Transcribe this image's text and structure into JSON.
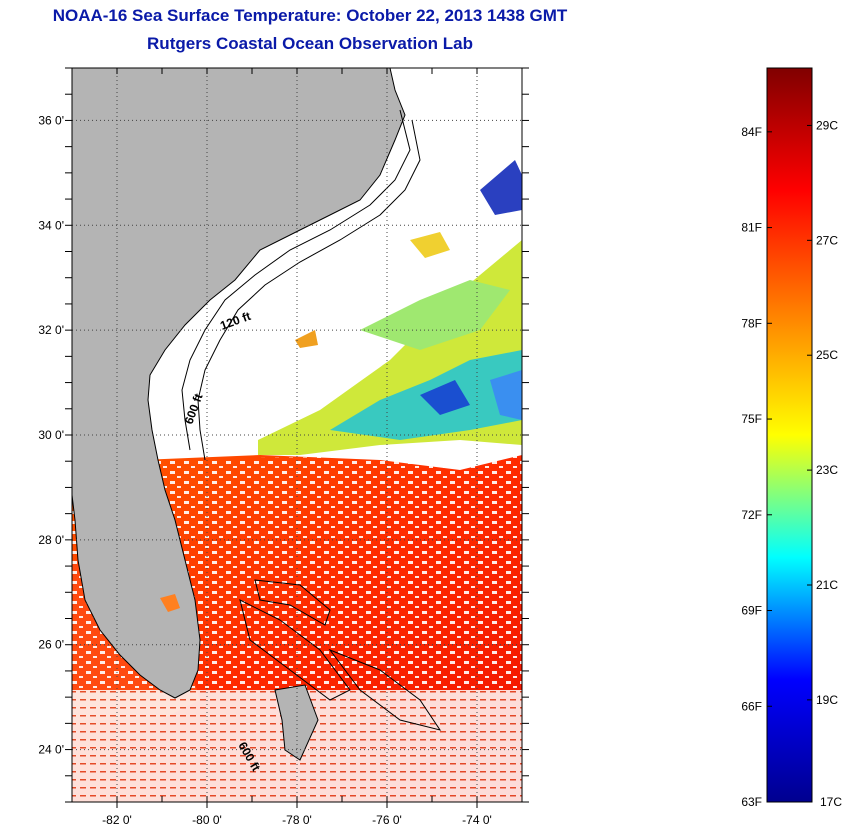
{
  "title": "NOAA-16 Sea Surface Temperature:  October 22, 2013 1438 GMT",
  "subtitle": "Rutgers Coastal Ocean Observation Lab",
  "map": {
    "lon_range": [
      -83,
      -73
    ],
    "lat_range": [
      23,
      37
    ],
    "lon_ticks": [
      {
        "value": -82,
        "label": "-82 0'"
      },
      {
        "value": -80,
        "label": "-80 0'"
      },
      {
        "value": -78,
        "label": "-78 0'"
      },
      {
        "value": -76,
        "label": "-76 0'"
      },
      {
        "value": -74,
        "label": "-74 0'"
      }
    ],
    "lat_ticks": [
      {
        "value": 24,
        "label": "24 0'"
      },
      {
        "value": 26,
        "label": "26 0'"
      },
      {
        "value": 28,
        "label": "28 0'"
      },
      {
        "value": 30,
        "label": "30 0'"
      },
      {
        "value": 32,
        "label": "32 0'"
      },
      {
        "value": 34,
        "label": "34 0'"
      },
      {
        "value": 36,
        "label": "36 0'"
      }
    ],
    "contour_labels": [
      "120 ft",
      "600 ft",
      "600 ft"
    ],
    "colors": {
      "land": "#b4b4b4",
      "coast": "#000000",
      "grid": "#555555"
    }
  },
  "colorbar": {
    "min_f": 63,
    "max_f": 86,
    "fahrenheit_labels": [
      {
        "value": 63,
        "label": "63F"
      },
      {
        "value": 66,
        "label": "66F"
      },
      {
        "value": 69,
        "label": "69F"
      },
      {
        "value": 72,
        "label": "72F"
      },
      {
        "value": 75,
        "label": "75F"
      },
      {
        "value": 78,
        "label": "78F"
      },
      {
        "value": 81,
        "label": "81F"
      },
      {
        "value": 84,
        "label": "84F"
      }
    ],
    "celsius_labels": [
      {
        "value": 17,
        "label": "17C"
      },
      {
        "value": 19,
        "label": "19C"
      },
      {
        "value": 21,
        "label": "21C"
      },
      {
        "value": 23,
        "label": "23C"
      },
      {
        "value": 25,
        "label": "25C"
      },
      {
        "value": 27,
        "label": "27C"
      },
      {
        "value": 29,
        "label": "29C"
      }
    ],
    "colors": [
      "#00008f",
      "#0000ff",
      "#00ffff",
      "#ffff00",
      "#ff8000",
      "#ff0000",
      "#800000"
    ]
  }
}
